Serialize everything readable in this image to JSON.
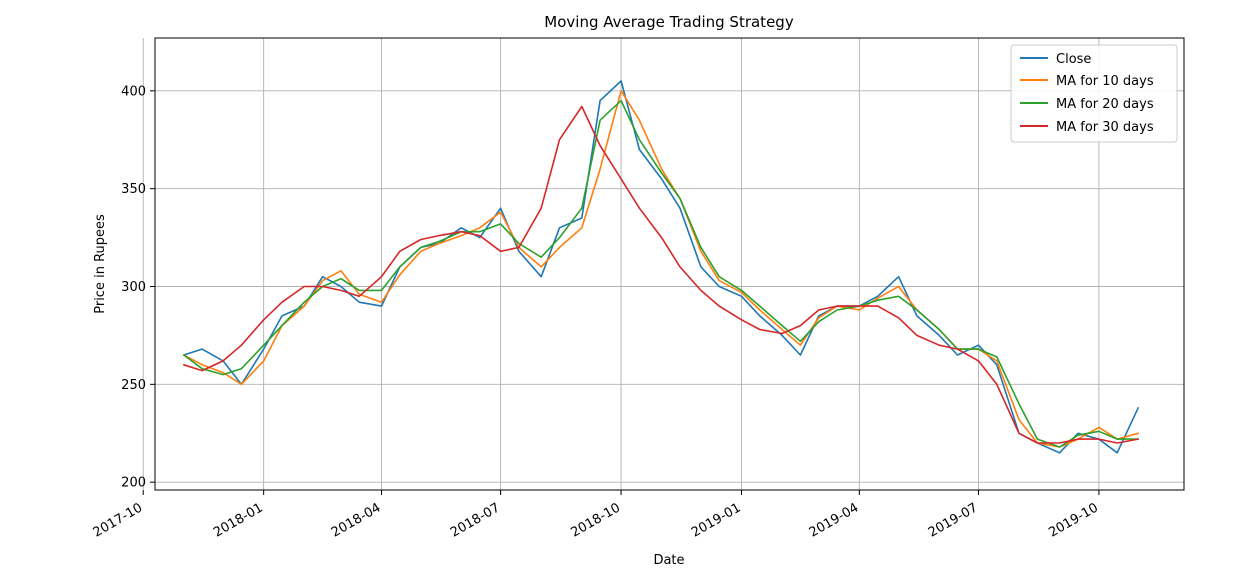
{
  "chart_data": {
    "type": "line",
    "title": "Moving Average Trading Strategy",
    "xlabel": "Date",
    "ylabel": "Price in Rupees",
    "xlim": [
      "2017-10-10",
      "2019-12-05"
    ],
    "ylim": [
      196,
      427
    ],
    "grid": true,
    "legend_position": "top-right",
    "x_ticks": [
      "2017-10",
      "2018-01",
      "2018-04",
      "2018-07",
      "2018-10",
      "2019-01",
      "2019-04",
      "2019-07",
      "2019-10"
    ],
    "y_ticks": [
      200,
      250,
      300,
      350,
      400
    ],
    "x": [
      "2017-11-01",
      "2017-11-15",
      "2017-12-01",
      "2017-12-15",
      "2018-01-01",
      "2018-01-15",
      "2018-02-01",
      "2018-02-15",
      "2018-03-01",
      "2018-03-15",
      "2018-04-01",
      "2018-04-15",
      "2018-05-01",
      "2018-05-15",
      "2018-06-01",
      "2018-06-15",
      "2018-07-01",
      "2018-07-15",
      "2018-08-01",
      "2018-08-15",
      "2018-09-01",
      "2018-09-15",
      "2018-10-01",
      "2018-10-15",
      "2018-11-01",
      "2018-11-15",
      "2018-12-01",
      "2018-12-15",
      "2019-01-01",
      "2019-01-15",
      "2019-02-01",
      "2019-02-15",
      "2019-03-01",
      "2019-03-15",
      "2019-04-01",
      "2019-04-15",
      "2019-05-01",
      "2019-05-15",
      "2019-06-01",
      "2019-06-15",
      "2019-07-01",
      "2019-07-15",
      "2019-08-01",
      "2019-08-15",
      "2019-09-01",
      "2019-09-15",
      "2019-10-01",
      "2019-10-15",
      "2019-10-31"
    ],
    "series": [
      {
        "name": "Close",
        "color": "#1f77b4",
        "values": [
          265,
          268,
          262,
          250,
          268,
          285,
          290,
          305,
          300,
          292,
          290,
          310,
          320,
          322,
          330,
          325,
          340,
          318,
          305,
          330,
          335,
          395,
          405,
          370,
          355,
          340,
          310,
          300,
          295,
          285,
          275,
          265,
          285,
          290,
          290,
          295,
          305,
          285,
          275,
          265,
          270,
          260,
          225,
          220,
          215,
          225,
          222,
          215,
          238
        ]
      },
      {
        "name": "MA for 10 days",
        "color": "#ff7f0e",
        "values": [
          265,
          260,
          256,
          250,
          262,
          280,
          290,
          303,
          308,
          296,
          292,
          306,
          318,
          322,
          326,
          330,
          338,
          320,
          310,
          320,
          330,
          360,
          400,
          385,
          360,
          345,
          318,
          303,
          297,
          288,
          278,
          270,
          284,
          290,
          288,
          294,
          300,
          288,
          278,
          268,
          268,
          262,
          232,
          220,
          218,
          222,
          228,
          222,
          225
        ]
      },
      {
        "name": "MA for 20 days",
        "color": "#2ca02c",
        "values": [
          265,
          258,
          255,
          258,
          270,
          280,
          292,
          300,
          304,
          298,
          298,
          310,
          320,
          323,
          328,
          328,
          332,
          322,
          315,
          325,
          340,
          385,
          395,
          375,
          358,
          345,
          320,
          305,
          298,
          290,
          280,
          272,
          282,
          288,
          290,
          293,
          295,
          288,
          278,
          268,
          268,
          264,
          240,
          222,
          218,
          224,
          226,
          222,
          222
        ]
      },
      {
        "name": "MA for 30 days",
        "color": "#d62728",
        "values": [
          260,
          257,
          262,
          270,
          283,
          292,
          300,
          300,
          298,
          295,
          305,
          318,
          324,
          326,
          328,
          326,
          318,
          320,
          340,
          375,
          392,
          372,
          355,
          340,
          325,
          310,
          298,
          290,
          283,
          278,
          276,
          280,
          288,
          290,
          290,
          290,
          284,
          275,
          270,
          268,
          262,
          250,
          225,
          220,
          220,
          222,
          222,
          220,
          222
        ]
      }
    ]
  }
}
